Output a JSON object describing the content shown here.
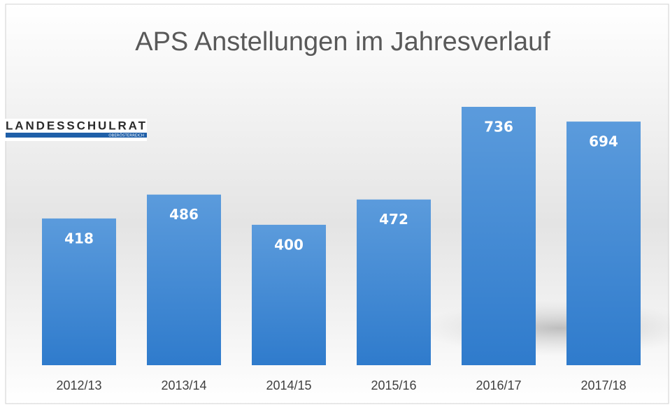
{
  "chart_data": {
    "type": "bar",
    "title": "APS Anstellungen im Jahresverlauf",
    "categories": [
      "2012/13",
      "2013/14",
      "2014/15",
      "2015/16",
      "2016/17",
      "2017/18"
    ],
    "values": [
      418,
      486,
      400,
      472,
      736,
      694
    ],
    "color": "#3f87d2"
  },
  "logo": {
    "name": "LANDESSCHULRAT",
    "region": "OBERÖSTERREICH"
  }
}
